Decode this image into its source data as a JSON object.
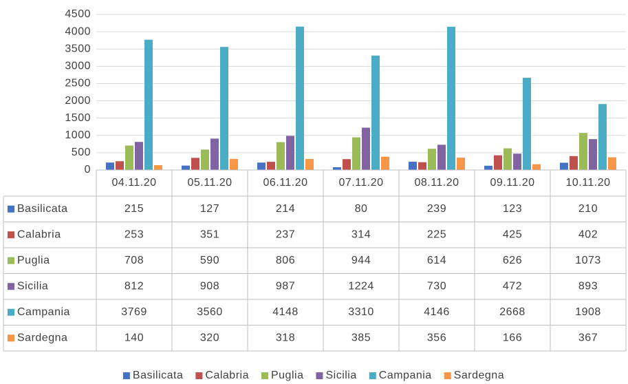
{
  "chart_data": {
    "type": "bar",
    "categories": [
      "04.11.20",
      "05.11.20",
      "06.11.20",
      "07.11.20",
      "08.11.20",
      "09.11.20",
      "10.11.20"
    ],
    "series": [
      {
        "name": "Basilicata",
        "color": "#4472c4",
        "values": [
          215,
          127,
          214,
          80,
          239,
          123,
          210
        ]
      },
      {
        "name": "Calabria",
        "color": "#c0504d",
        "values": [
          253,
          351,
          237,
          314,
          225,
          425,
          402
        ]
      },
      {
        "name": "Puglia",
        "color": "#9bbb59",
        "values": [
          708,
          590,
          806,
          944,
          614,
          626,
          1073
        ]
      },
      {
        "name": "Sicilia",
        "color": "#8064a2",
        "values": [
          812,
          908,
          987,
          1224,
          730,
          472,
          893
        ]
      },
      {
        "name": "Campania",
        "color": "#4bacc6",
        "values": [
          3769,
          3560,
          4148,
          3310,
          4146,
          2668,
          1908
        ]
      },
      {
        "name": "Sardegna",
        "color": "#f79646",
        "values": [
          140,
          320,
          318,
          385,
          356,
          166,
          367
        ]
      }
    ],
    "ylim": [
      0,
      4500
    ],
    "yticks": [
      0,
      500,
      1000,
      1500,
      2000,
      2500,
      3000,
      3500,
      4000,
      4500
    ],
    "grid": true,
    "legend": "bottom",
    "data_table": true
  }
}
